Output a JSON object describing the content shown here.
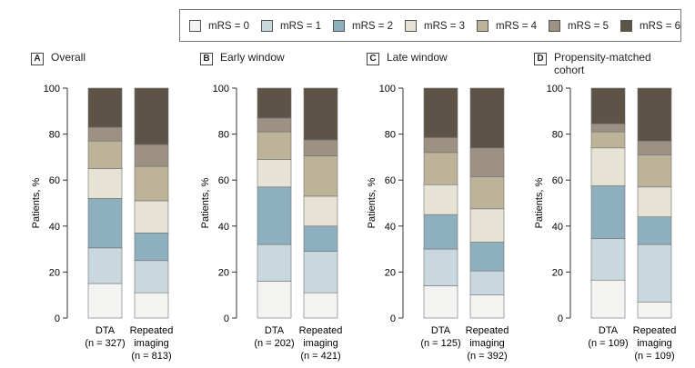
{
  "legend": {
    "items": [
      {
        "label": "mRS = 0",
        "color": "#f3f4f2"
      },
      {
        "label": "mRS = 1",
        "color": "#c9d7df"
      },
      {
        "label": "mRS = 2",
        "color": "#8eafbe"
      },
      {
        "label": "mRS = 3",
        "color": "#e6e3d4"
      },
      {
        "label": "mRS = 4",
        "color": "#bcb398"
      },
      {
        "label": "mRS = 5",
        "color": "#9c9182"
      },
      {
        "label": "mRS = 6",
        "color": "#5d5447"
      }
    ]
  },
  "chart_data": [
    {
      "type": "bar",
      "stacked": true,
      "panel_letter": "A",
      "title": "Overall",
      "ylabel": "Patients, %",
      "ylim": [
        0,
        100
      ],
      "yticks": [
        "0",
        "20",
        "40",
        "60",
        "80",
        "100"
      ],
      "categories": [
        {
          "line1": "DTA",
          "line2": "(n = 327)",
          "line3": ""
        },
        {
          "line1": "Repeated",
          "line2": "imaging",
          "line3": "(n = 813)"
        }
      ],
      "series": [
        {
          "name": "mRS = 0",
          "values": [
            15,
            11
          ]
        },
        {
          "name": "mRS = 1",
          "values": [
            15.5,
            14
          ]
        },
        {
          "name": "mRS = 2",
          "values": [
            21.5,
            12
          ]
        },
        {
          "name": "mRS = 3",
          "values": [
            13,
            14
          ]
        },
        {
          "name": "mRS = 4",
          "values": [
            12,
            15
          ]
        },
        {
          "name": "mRS = 5",
          "values": [
            6,
            9.5
          ]
        },
        {
          "name": "mRS = 6",
          "values": [
            17,
            24.5
          ]
        }
      ]
    },
    {
      "type": "bar",
      "stacked": true,
      "panel_letter": "B",
      "title": "Early window",
      "ylabel": "Patients, %",
      "ylim": [
        0,
        100
      ],
      "yticks": [
        "0",
        "20",
        "40",
        "60",
        "80",
        "100"
      ],
      "categories": [
        {
          "line1": "DTA",
          "line2": "(n = 202)",
          "line3": ""
        },
        {
          "line1": "Repeated",
          "line2": "imaging",
          "line3": "(n = 421)"
        }
      ],
      "series": [
        {
          "name": "mRS = 0",
          "values": [
            16,
            11
          ]
        },
        {
          "name": "mRS = 1",
          "values": [
            16,
            18
          ]
        },
        {
          "name": "mRS = 2",
          "values": [
            25,
            11
          ]
        },
        {
          "name": "mRS = 3",
          "values": [
            12,
            13
          ]
        },
        {
          "name": "mRS = 4",
          "values": [
            12,
            17.5
          ]
        },
        {
          "name": "mRS = 5",
          "values": [
            6,
            7
          ]
        },
        {
          "name": "mRS = 6",
          "values": [
            13,
            22.5
          ]
        }
      ]
    },
    {
      "type": "bar",
      "stacked": true,
      "panel_letter": "C",
      "title": "Late window",
      "ylabel": "Patients, %",
      "ylim": [
        0,
        100
      ],
      "yticks": [
        "0",
        "20",
        "40",
        "60",
        "80",
        "100"
      ],
      "categories": [
        {
          "line1": "DTA",
          "line2": "(n = 125)",
          "line3": ""
        },
        {
          "line1": "Repeated",
          "line2": "imaging",
          "line3": "(n = 392)"
        }
      ],
      "series": [
        {
          "name": "mRS = 0",
          "values": [
            14,
            10
          ]
        },
        {
          "name": "mRS = 1",
          "values": [
            16,
            10.5
          ]
        },
        {
          "name": "mRS = 2",
          "values": [
            15,
            12.5
          ]
        },
        {
          "name": "mRS = 3",
          "values": [
            13,
            14.5
          ]
        },
        {
          "name": "mRS = 4",
          "values": [
            14,
            14
          ]
        },
        {
          "name": "mRS = 5",
          "values": [
            6.5,
            12.5
          ]
        },
        {
          "name": "mRS = 6",
          "values": [
            21.5,
            26
          ]
        }
      ]
    },
    {
      "type": "bar",
      "stacked": true,
      "panel_letter": "D",
      "title": "Propensity-matched\ncohort",
      "ylabel": "Patients, %",
      "ylim": [
        0,
        100
      ],
      "yticks": [
        "0",
        "20",
        "40",
        "60",
        "80",
        "100"
      ],
      "categories": [
        {
          "line1": "DTA",
          "line2": "(n = 109)",
          "line3": ""
        },
        {
          "line1": "Repeated",
          "line2": "imaging",
          "line3": "(n = 109)"
        }
      ],
      "series": [
        {
          "name": "mRS = 0",
          "values": [
            16.5,
            7
          ]
        },
        {
          "name": "mRS = 1",
          "values": [
            18,
            25
          ]
        },
        {
          "name": "mRS = 2",
          "values": [
            23,
            12
          ]
        },
        {
          "name": "mRS = 3",
          "values": [
            16.5,
            13
          ]
        },
        {
          "name": "mRS = 4",
          "values": [
            7,
            14
          ]
        },
        {
          "name": "mRS = 5",
          "values": [
            3.5,
            6
          ]
        },
        {
          "name": "mRS = 6",
          "values": [
            15.5,
            23
          ]
        }
      ]
    }
  ]
}
